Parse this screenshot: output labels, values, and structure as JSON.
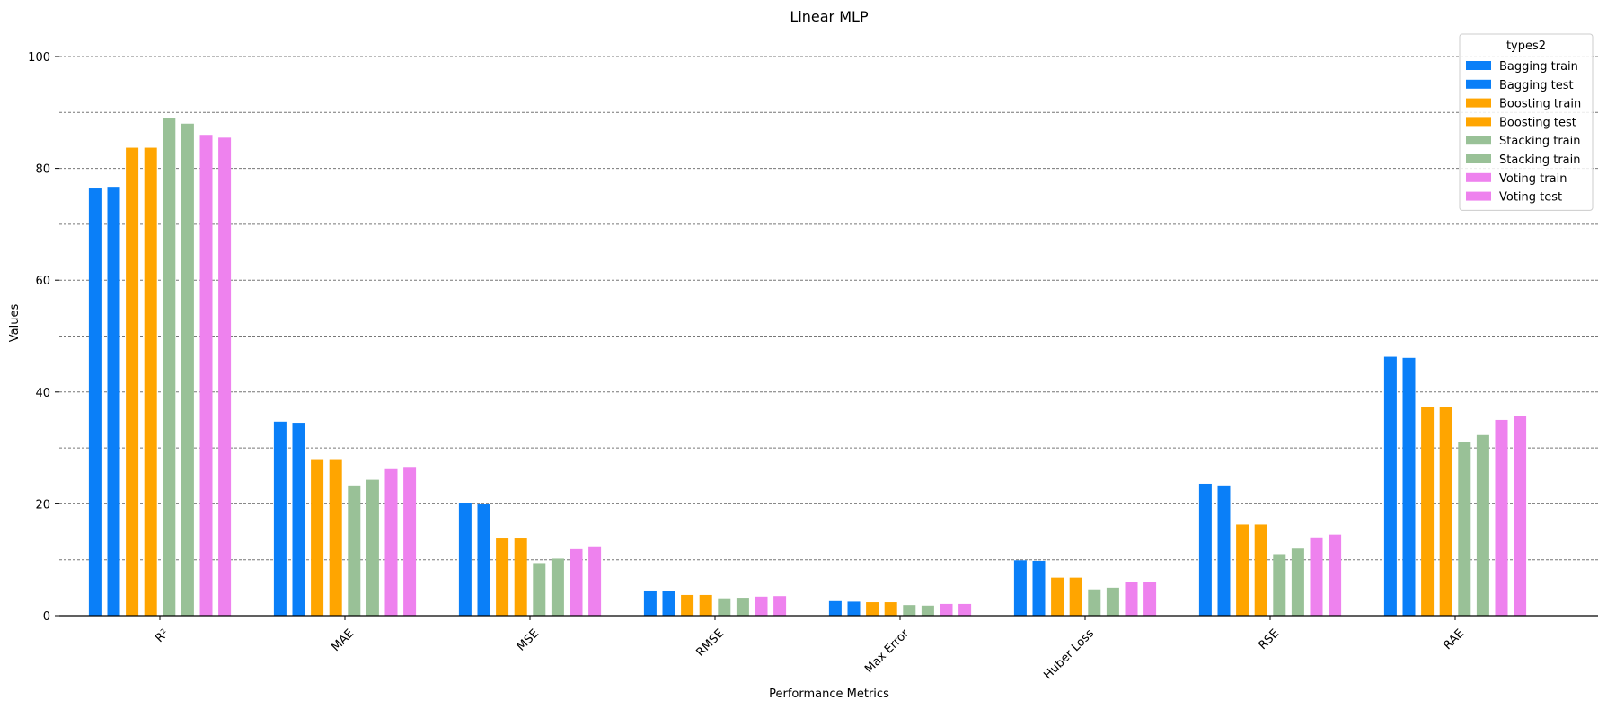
{
  "chart_data": {
    "type": "bar",
    "title": "Linear MLP",
    "xlabel": "Performance Metrics",
    "ylabel": "Values",
    "ylim": [
      0,
      100
    ],
    "yticks": [
      0,
      20,
      40,
      60,
      80,
      100
    ],
    "grid": "y-dashed",
    "legend": {
      "title": "types2",
      "placement": "top-right"
    },
    "categories": [
      "R²",
      "MAE",
      "MSE",
      "RMSE",
      "Max Error",
      "Huber Loss",
      "RSE",
      "RAE"
    ],
    "series": [
      {
        "name": "Bagging train",
        "color": "#0a7ff8",
        "values": [
          76.4,
          34.7,
          20.1,
          4.5,
          2.6,
          9.9,
          23.6,
          46.3
        ]
      },
      {
        "name": "Bagging test",
        "color": "#0a7ff8",
        "values": [
          76.7,
          34.5,
          19.9,
          4.4,
          2.5,
          9.8,
          23.3,
          46.1
        ]
      },
      {
        "name": "Boosting train",
        "color": "#ffa500",
        "values": [
          83.7,
          28.0,
          13.8,
          3.7,
          2.4,
          6.8,
          16.3,
          37.3
        ]
      },
      {
        "name": "Boosting test",
        "color": "#ffa500",
        "values": [
          83.7,
          28.0,
          13.8,
          3.7,
          2.4,
          6.8,
          16.3,
          37.3
        ]
      },
      {
        "name": "Stacking train",
        "color": "#99c197",
        "values": [
          89.0,
          23.3,
          9.4,
          3.1,
          1.9,
          4.7,
          11.0,
          31.0
        ]
      },
      {
        "name": "Stacking train",
        "color": "#99c197",
        "values": [
          88.0,
          24.3,
          10.2,
          3.2,
          1.8,
          5.0,
          12.0,
          32.3
        ]
      },
      {
        "name": "Voting train",
        "color": "#ee82ee",
        "values": [
          86.0,
          26.2,
          11.9,
          3.4,
          2.1,
          6.0,
          14.0,
          35.0
        ]
      },
      {
        "name": "Voting test",
        "color": "#ee82ee",
        "values": [
          85.5,
          26.6,
          12.4,
          3.5,
          2.1,
          6.1,
          14.5,
          35.7
        ]
      }
    ]
  }
}
